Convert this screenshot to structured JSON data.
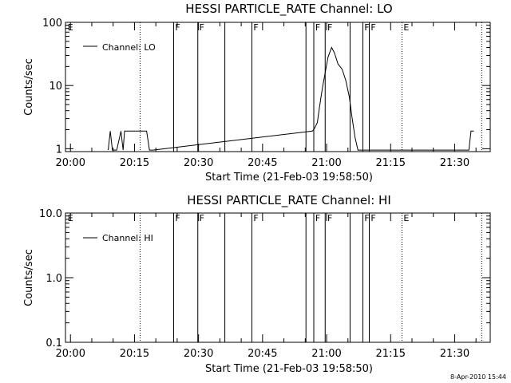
{
  "chart_data": [
    {
      "type": "line",
      "title": "HESSI PARTICLE_RATE Channel: LO",
      "xlabel": "Start Time (21-Feb-03 19:58:50)",
      "ylabel": "Counts/sec",
      "log_y": true,
      "ylim": [
        0.9,
        100
      ],
      "xlim": [
        "19:58:50",
        "21:38:20"
      ],
      "x_tick_labels": [
        "20:00",
        "20:15",
        "20:30",
        "20:45",
        "21:00",
        "21:15",
        "21:30"
      ],
      "y_ticks": [
        1,
        10,
        100
      ],
      "y_tick_labels": [
        "1",
        "10",
        "100"
      ],
      "legend": "top-left",
      "series": [
        {
          "name": "Channel: LO",
          "x": [
            "20:08:50",
            "20:09:20",
            "20:09:50",
            "20:10:50",
            "20:11:50",
            "20:12:20",
            "20:12:40",
            "20:13:20",
            "20:17:50",
            "20:18:30",
            "20:19:20",
            "20:56:40",
            "20:57:10",
            "20:57:50",
            "20:58:20",
            "20:59:00",
            "20:59:40",
            "21:00:20",
            "21:01:10",
            "21:01:50",
            "21:02:40",
            "21:03:40",
            "21:04:30",
            "21:05:20",
            "21:06:00",
            "21:06:40",
            "21:07:20",
            "21:08:00",
            "21:33:20",
            "21:33:50",
            "21:34:30"
          ],
          "values": [
            0.95,
            1.9,
            0.95,
            0.95,
            1.9,
            0.95,
            1.9,
            1.9,
            1.9,
            0.95,
            0.95,
            1.9,
            2.1,
            2.6,
            4.5,
            9.0,
            16,
            28,
            40,
            33,
            22,
            18,
            12,
            6.5,
            3.0,
            1.5,
            0.95,
            0.95,
            0.95,
            1.9,
            1.9
          ]
        }
      ]
    },
    {
      "type": "line",
      "title": "HESSI PARTICLE_RATE Channel: HI",
      "xlabel": "Start Time (21-Feb-03 19:58:50)",
      "ylabel": "Counts/sec",
      "log_y": true,
      "ylim": [
        0.1,
        10
      ],
      "xlim": [
        "19:58:50",
        "21:38:20"
      ],
      "x_tick_labels": [
        "20:00",
        "20:15",
        "20:30",
        "20:45",
        "21:00",
        "21:15",
        "21:30"
      ],
      "y_ticks": [
        0.1,
        1,
        10
      ],
      "y_tick_labels": [
        "0.1",
        "1.0",
        "10.0"
      ],
      "legend": "top-left",
      "series": [
        {
          "name": "Channel: HI",
          "x": [],
          "values": []
        }
      ]
    }
  ],
  "markers": {
    "solid_times": [
      "20:24:10",
      "20:29:50",
      "20:36:10",
      "20:42:30",
      "20:55:10",
      "20:57:00",
      "20:59:40",
      "21:05:30",
      "21:08:30",
      "21:10:00"
    ],
    "dotted_times": [
      "20:16:20",
      "21:17:40",
      "21:36:20"
    ],
    "E_label_times": [
      "19:59:10",
      "21:17:50"
    ],
    "F_label_times": [
      "20:24:20",
      "20:30:00",
      "20:42:40",
      "20:57:10",
      "21:00:00",
      "21:08:40",
      "21:10:10"
    ],
    "E_label": "E",
    "F_label": "F"
  },
  "timestamp": "8-Apr-2010 15:44"
}
